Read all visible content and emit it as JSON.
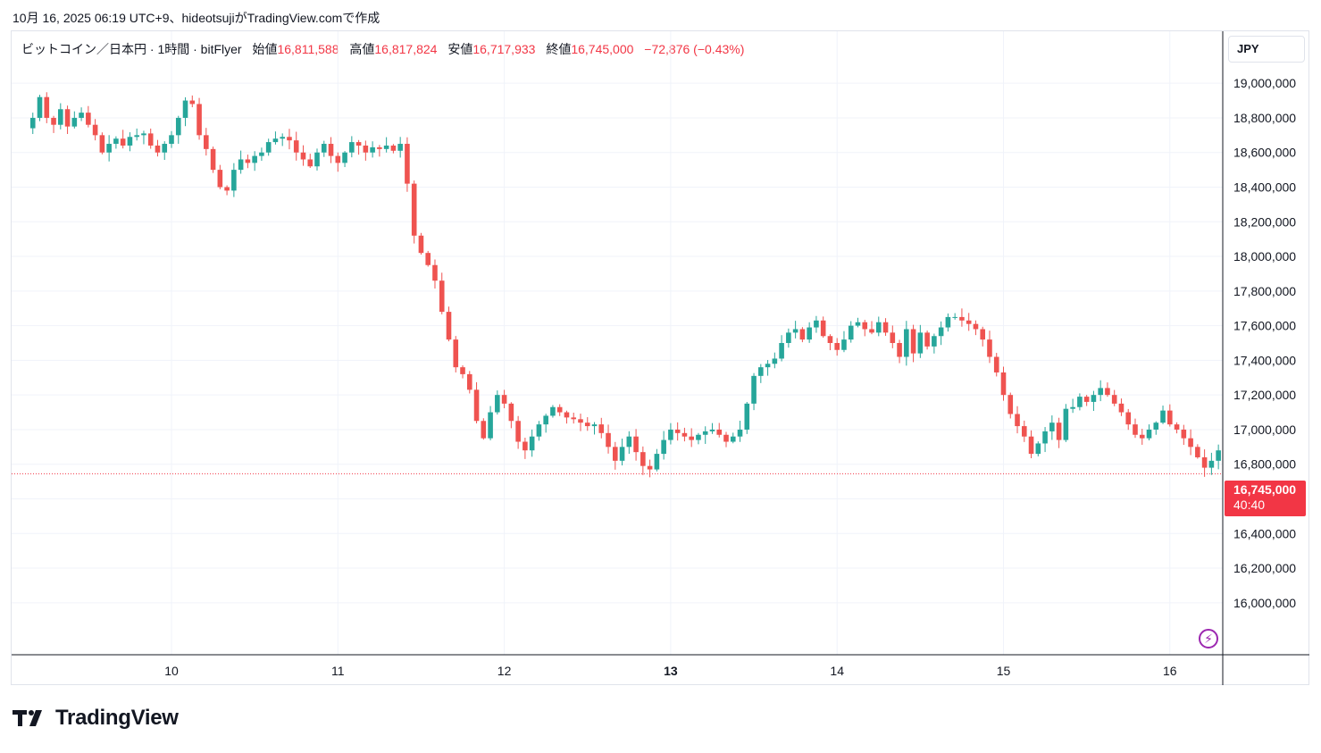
{
  "header": {
    "created": "10月 16, 2025 06:19 UTC+9、hideotsujiがTradingView.comで作成"
  },
  "legend": {
    "symbol": "ビットコイン／日本円 · 1時間 · bitFlyer",
    "open_label": "始値",
    "open": "16,811,588",
    "high_label": "高値",
    "high": "16,817,824",
    "low_label": "安値",
    "low": "16,717,933",
    "close_label": "終値",
    "close": "16,745,000",
    "change": "−72,876 (−0.43%)"
  },
  "currency": "JPY",
  "last_price": {
    "value": "16,745,000",
    "countdown": "40:40",
    "number": 16745000
  },
  "brand": "TradingView",
  "icons": {
    "alert": "bolt-icon",
    "logo": "tradingview-logo-icon"
  },
  "colors": {
    "up": "#26a69a",
    "down": "#ef5350",
    "last": "#f23645",
    "grid": "#f0f3fa",
    "axis": "#131722"
  },
  "chart_data": {
    "type": "candlestick",
    "ylim": [
      15700000,
      19300000
    ],
    "x_tick_labels": [
      "10",
      "11",
      "12",
      "13",
      "14",
      "15",
      "16"
    ],
    "x_tick_bold": [
      false,
      false,
      false,
      true,
      false,
      false,
      false
    ],
    "y_tick_labels": [
      "16,000,000",
      "16,200,000",
      "16,400,000",
      "16,600,000",
      "16,800,000",
      "17,000,000",
      "17,200,000",
      "17,400,000",
      "17,600,000",
      "17,800,000",
      "18,000,000",
      "18,200,000",
      "18,400,000",
      "18,600,000",
      "18,800,000",
      "19,000,000"
    ],
    "y_tick_values": [
      16000000,
      16200000,
      16400000,
      16600000,
      16800000,
      17000000,
      17200000,
      17400000,
      17600000,
      17800000,
      18000000,
      18200000,
      18400000,
      18600000,
      18800000,
      19000000
    ],
    "first_day_start_index": 20,
    "hours_per_day": 24,
    "hourly_closes": [
      18800000,
      18920000,
      18800000,
      18760000,
      18850000,
      18750000,
      18800000,
      18830000,
      18760000,
      18700000,
      18600000,
      18650000,
      18680000,
      18640000,
      18690000,
      18700000,
      18710000,
      18640000,
      18600000,
      18650000,
      18700000,
      18800000,
      18900000,
      18880000,
      18700000,
      18620000,
      18500000,
      18400000,
      18380000,
      18500000,
      18560000,
      18540000,
      18580000,
      18600000,
      18660000,
      18680000,
      18690000,
      18670000,
      18600000,
      18560000,
      18520000,
      18600000,
      18650000,
      18580000,
      18540000,
      18600000,
      18660000,
      18640000,
      18600000,
      18630000,
      18620000,
      18640000,
      18610000,
      18650000,
      18420000,
      18120000,
      18020000,
      17950000,
      17860000,
      17680000,
      17520000,
      17360000,
      17320000,
      17230000,
      17050000,
      16950000,
      17100000,
      17200000,
      17150000,
      17050000,
      16930000,
      16880000,
      16960000,
      17030000,
      17080000,
      17130000,
      17100000,
      17070000,
      17060000,
      17040000,
      17020000,
      17030000,
      16980000,
      16900000,
      16820000,
      16900000,
      16960000,
      16870000,
      16790000,
      16770000,
      16860000,
      16940000,
      17000000,
      16980000,
      16960000,
      16940000,
      16970000,
      16990000,
      17000000,
      16970000,
      16930000,
      16960000,
      17000000,
      17150000,
      17310000,
      17360000,
      17380000,
      17410000,
      17500000,
      17560000,
      17580000,
      17520000,
      17590000,
      17630000,
      17540000,
      17500000,
      17460000,
      17520000,
      17600000,
      17620000,
      17580000,
      17560000,
      17620000,
      17560000,
      17500000,
      17420000,
      17580000,
      17440000,
      17560000,
      17480000,
      17540000,
      17590000,
      17650000,
      17650000,
      17630000,
      17610000,
      17580000,
      17520000,
      17420000,
      17330000,
      17200000,
      17090000,
      17020000,
      16960000,
      16860000,
      16920000,
      16990000,
      17040000,
      16940000,
      17120000,
      17130000,
      17190000,
      17160000,
      17200000,
      17240000,
      17200000,
      17150000,
      17100000,
      17030000,
      16970000,
      16950000,
      17000000,
      17040000,
      17110000,
      17030000,
      17000000,
      16950000,
      16900000,
      16840000,
      16780000,
      16820000,
      16880000,
      16880000,
      16820000,
      16745000
    ]
  }
}
